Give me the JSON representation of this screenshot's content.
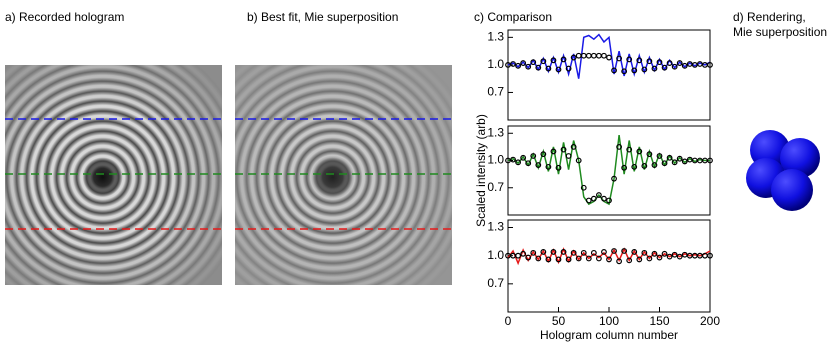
{
  "panels": [
    "a) Recorded hologram",
    "b) Best fit, Mie superposition",
    "c) Comparison",
    "d) Rendering,",
    "Mie superposition"
  ],
  "chart_data": [
    {
      "type": "line",
      "x": [
        0,
        5,
        10,
        15,
        20,
        25,
        30,
        35,
        40,
        45,
        50,
        55,
        60,
        65,
        70,
        75,
        80,
        85,
        90,
        95,
        100,
        105,
        110,
        115,
        120,
        125,
        130,
        135,
        140,
        145,
        150,
        155,
        160,
        165,
        170,
        175,
        180,
        185,
        190,
        195,
        200
      ],
      "xlim": [
        0,
        200
      ],
      "ylim": [
        0.4,
        1.38
      ],
      "yticks": [
        0.7,
        {
          "value": 1,
          "label": "1.0"
        },
        1.3
      ],
      "series": [
        {
          "color": "#1a1ae6",
          "marker": false,
          "values": [
            1.0,
            1.02,
            0.98,
            1.03,
            0.97,
            1.05,
            0.95,
            1.07,
            0.93,
            1.08,
            0.92,
            1.1,
            0.9,
            1.12,
            0.85,
            1.3,
            1.32,
            1.28,
            1.33,
            1.25,
            1.3,
            0.9,
            1.15,
            0.88,
            1.12,
            0.9,
            1.1,
            0.92,
            1.08,
            0.94,
            1.06,
            0.95,
            1.05,
            0.97,
            1.03,
            0.98,
            1.02,
            0.99,
            1.02,
            1.0,
            1.03
          ]
        },
        {
          "color": "#000000",
          "marker": true,
          "values": [
            1.0,
            1.01,
            0.99,
            1.02,
            0.98,
            1.03,
            0.97,
            1.04,
            0.96,
            1.05,
            0.95,
            1.06,
            0.96,
            1.08,
            1.1,
            1.1,
            1.1,
            1.1,
            1.1,
            1.1,
            1.08,
            0.94,
            1.07,
            0.93,
            1.06,
            0.94,
            1.05,
            0.95,
            1.04,
            0.96,
            1.03,
            0.97,
            1.02,
            0.98,
            1.02,
            0.99,
            1.01,
            1.0,
            1.01,
            1.0,
            1.0
          ]
        }
      ]
    },
    {
      "type": "line",
      "x": [
        0,
        5,
        10,
        15,
        20,
        25,
        30,
        35,
        40,
        45,
        50,
        55,
        60,
        65,
        70,
        75,
        80,
        85,
        90,
        95,
        100,
        105,
        110,
        115,
        120,
        125,
        130,
        135,
        140,
        145,
        150,
        155,
        160,
        165,
        170,
        175,
        180,
        185,
        190,
        195,
        200
      ],
      "xlim": [
        0,
        200
      ],
      "ylim": [
        0.4,
        1.38
      ],
      "yticks": [
        0.7,
        {
          "value": 1,
          "label": "1.0"
        },
        1.3
      ],
      "ylabel": "Scaled intensity (arb)",
      "series": [
        {
          "color": "#1f8a1f",
          "marker": false,
          "values": [
            1.0,
            1.02,
            0.97,
            1.04,
            0.95,
            1.07,
            0.92,
            1.1,
            0.88,
            1.15,
            0.85,
            1.2,
            0.9,
            1.22,
            1.0,
            0.6,
            0.52,
            0.55,
            0.62,
            0.55,
            0.52,
            0.8,
            1.28,
            0.85,
            1.22,
            0.88,
            1.15,
            0.9,
            1.1,
            0.93,
            1.07,
            0.95,
            1.05,
            0.97,
            1.03,
            0.98,
            1.02,
            0.99,
            1.01,
            1.0,
            1.0
          ]
        },
        {
          "color": "#000000",
          "marker": true,
          "values": [
            1.0,
            1.01,
            0.98,
            1.03,
            0.97,
            1.05,
            0.95,
            1.07,
            0.93,
            1.1,
            0.92,
            1.12,
            1.05,
            1.15,
            1.0,
            0.7,
            0.56,
            0.58,
            0.62,
            0.58,
            0.56,
            0.8,
            1.15,
            0.92,
            1.12,
            0.93,
            1.1,
            0.94,
            1.07,
            0.95,
            1.05,
            0.97,
            1.03,
            0.98,
            1.02,
            0.99,
            1.01,
            1.0,
            1.0,
            1.0,
            1.0
          ]
        }
      ]
    },
    {
      "type": "line",
      "x": [
        0,
        5,
        10,
        15,
        20,
        25,
        30,
        35,
        40,
        45,
        50,
        55,
        60,
        65,
        70,
        75,
        80,
        85,
        90,
        95,
        100,
        105,
        110,
        115,
        120,
        125,
        130,
        135,
        140,
        145,
        150,
        155,
        160,
        165,
        170,
        175,
        180,
        185,
        190,
        195,
        200
      ],
      "xlim": [
        0,
        200
      ],
      "ylim": [
        0.4,
        1.38
      ],
      "xticks": [
        0,
        50,
        100,
        150,
        200
      ],
      "yticks": [
        0.7,
        {
          "value": 1,
          "label": "1.0"
        },
        1.3
      ],
      "xlabel": "Hologram column number",
      "series": [
        {
          "color": "#e61a1a",
          "marker": false,
          "values": [
            0.98,
            1.05,
            0.92,
            1.06,
            0.95,
            1.04,
            0.96,
            1.05,
            0.94,
            1.06,
            0.93,
            1.07,
            0.94,
            1.05,
            0.96,
            1.03,
            0.97,
            1.02,
            0.98,
            1.03,
            0.96,
            1.06,
            0.95,
            1.07,
            0.95,
            1.05,
            0.96,
            1.04,
            0.97,
            1.03,
            0.98,
            1.02,
            0.99,
            1.02,
            0.99,
            1.02,
            1.0,
            1.01,
            1.0,
            1.02,
            1.05
          ]
        },
        {
          "color": "#000000",
          "marker": true,
          "values": [
            1.0,
            1.0,
            1.0,
            1.02,
            0.98,
            1.03,
            0.97,
            1.04,
            0.96,
            1.04,
            0.96,
            1.04,
            0.96,
            1.03,
            0.97,
            1.03,
            0.97,
            1.03,
            0.97,
            1.04,
            0.96,
            1.05,
            0.94,
            1.05,
            0.95,
            1.04,
            0.96,
            1.03,
            0.97,
            1.02,
            0.98,
            1.02,
            0.99,
            1.01,
            0.99,
            1.01,
            1.0,
            1.0,
            1.0,
            1.0,
            1.0
          ]
        }
      ]
    }
  ]
}
